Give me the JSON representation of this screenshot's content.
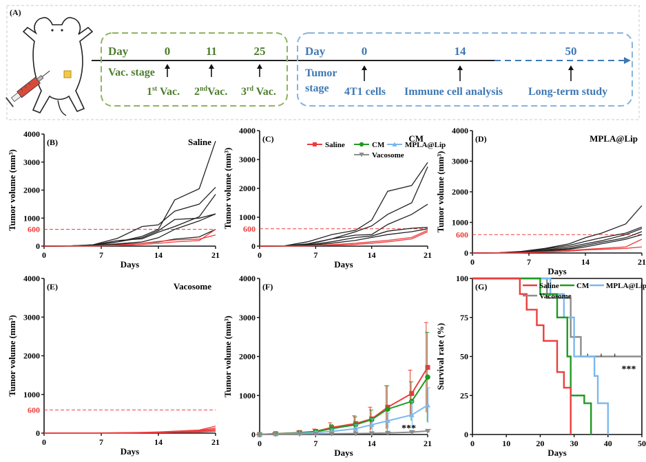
{
  "colors": {
    "saline": "#ee3b3b",
    "cm": "#1f9a1f",
    "mpla": "#7ab8ee",
    "vacosome": "#8c8c8c",
    "vac_green": "#4e7d2e",
    "tumor_blue": "#3e78b4",
    "threshold": "#ee3b3b"
  },
  "icons": {
    "mouse": "mouse-with-syringe-icon"
  },
  "scheme": {
    "panel_label": "(A)",
    "vac": {
      "day_label": "Day",
      "days": [
        "0",
        "11",
        "25"
      ],
      "stage_label": "Vac. stage",
      "vac1": {
        "num": "1",
        "sup": "st",
        "rest": " Vac."
      },
      "vac2": {
        "num": "2",
        "sup": "nd",
        "rest": "Vac."
      },
      "vac3": {
        "num": "3",
        "sup": "rd",
        "rest": " Vac."
      }
    },
    "tumor": {
      "day_label": "Day",
      "days": [
        "0",
        "14",
        "50"
      ],
      "stage_label_1": "Tumor",
      "stage_label_2": "stage",
      "events": [
        "4T1 cells",
        "Immune cell analysis",
        "Long-term study"
      ]
    }
  },
  "charts": {
    "volume_y_label": "Tumor volume (mm³)",
    "x_label": "Days",
    "x_ticks": [
      "0",
      "7",
      "14",
      "21"
    ],
    "y_ticks": [
      "0",
      "1000",
      "2000",
      "3000",
      "4000"
    ],
    "threshold_label": "600"
  },
  "chart_data": [
    {
      "type": "line",
      "panel": "(B)",
      "title": "Saline",
      "xlabel": "Days",
      "ylabel": "Tumor volume (mm³)",
      "xlim": [
        0,
        21
      ],
      "ylim": [
        0,
        4000
      ],
      "threshold": 600,
      "x": [
        0,
        3,
        6,
        9,
        12,
        14,
        16,
        19,
        21
      ],
      "series": [
        {
          "values": [
            0,
            5,
            30,
            150,
            350,
            600,
            1650,
            2050,
            3750
          ],
          "color": "black"
        },
        {
          "values": [
            0,
            5,
            50,
            280,
            700,
            760,
            1250,
            1500,
            2100
          ],
          "color": "black"
        },
        {
          "values": [
            0,
            5,
            40,
            200,
            260,
            500,
            700,
            1050,
            1850
          ],
          "color": "black"
        },
        {
          "values": [
            0,
            5,
            30,
            150,
            300,
            550,
            950,
            1000,
            1150
          ],
          "color": "black"
        },
        {
          "values": [
            0,
            5,
            20,
            80,
            150,
            300,
            600,
            900,
            1150
          ],
          "color": "black"
        },
        {
          "values": [
            0,
            3,
            15,
            60,
            100,
            150,
            250,
            330,
            600
          ],
          "color": "black"
        },
        {
          "values": [
            0,
            2,
            10,
            40,
            100,
            170,
            220,
            250,
            400
          ],
          "color": "red"
        },
        {
          "values": [
            0,
            2,
            5,
            20,
            60,
            100,
            150,
            200,
            600
          ],
          "color": "red"
        }
      ]
    },
    {
      "type": "line",
      "panel": "(C)",
      "title": "CM",
      "xlabel": "Days",
      "ylabel": "Tumor volume (mm³)",
      "xlim": [
        0,
        21
      ],
      "ylim": [
        0,
        4000
      ],
      "threshold": 600,
      "x": [
        0,
        3,
        6,
        9,
        12,
        14,
        16,
        19,
        21
      ],
      "series": [
        {
          "values": [
            0,
            5,
            150,
            400,
            550,
            900,
            1900,
            2100,
            2900
          ],
          "color": "black"
        },
        {
          "values": [
            0,
            5,
            80,
            250,
            500,
            700,
            1100,
            1500,
            2750
          ],
          "color": "black"
        },
        {
          "values": [
            0,
            5,
            60,
            250,
            380,
            400,
            750,
            1100,
            1450
          ],
          "color": "black"
        },
        {
          "values": [
            0,
            5,
            40,
            150,
            300,
            350,
            520,
            620,
            650
          ],
          "color": "black"
        },
        {
          "values": [
            0,
            3,
            20,
            100,
            200,
            300,
            400,
            500,
            600
          ],
          "color": "black"
        },
        {
          "values": [
            0,
            2,
            10,
            50,
            100,
            150,
            200,
            300,
            550
          ],
          "color": "red"
        },
        {
          "values": [
            0,
            2,
            8,
            30,
            60,
            100,
            150,
            250,
            500
          ],
          "color": "red"
        }
      ]
    },
    {
      "type": "line",
      "panel": "(D)",
      "title": "MPLA@Lip",
      "xlabel": "Days",
      "ylabel": "Tumor volume (mm³)",
      "xlim": [
        0,
        21
      ],
      "ylim": [
        0,
        4000
      ],
      "threshold": 600,
      "x": [
        0,
        3,
        6,
        9,
        12,
        14,
        16,
        19,
        21
      ],
      "series": [
        {
          "values": [
            0,
            5,
            50,
            150,
            300,
            500,
            650,
            950,
            1550
          ],
          "color": "black"
        },
        {
          "values": [
            0,
            5,
            40,
            130,
            250,
            380,
            500,
            650,
            850
          ],
          "color": "black"
        },
        {
          "values": [
            0,
            5,
            30,
            100,
            200,
            300,
            400,
            600,
            800
          ],
          "color": "black"
        },
        {
          "values": [
            0,
            3,
            20,
            80,
            150,
            250,
            350,
            500,
            700
          ],
          "color": "black"
        },
        {
          "values": [
            0,
            3,
            20,
            60,
            120,
            200,
            300,
            450,
            600
          ],
          "color": "black"
        },
        {
          "values": [
            0,
            2,
            10,
            40,
            80,
            120,
            150,
            200,
            450
          ],
          "color": "red"
        },
        {
          "values": [
            0,
            2,
            8,
            30,
            60,
            100,
            120,
            150,
            200
          ],
          "color": "red"
        }
      ]
    },
    {
      "type": "line",
      "panel": "(E)",
      "title": "Vacosome",
      "xlabel": "Days",
      "ylabel": "Tumor volume (mm³)",
      "xlim": [
        0,
        21
      ],
      "ylim": [
        0,
        4000
      ],
      "threshold": 600,
      "x": [
        0,
        3,
        6,
        9,
        12,
        14,
        16,
        19,
        21
      ],
      "series": [
        {
          "values": [
            0,
            2,
            5,
            10,
            20,
            30,
            50,
            80,
            180
          ],
          "color": "red"
        },
        {
          "values": [
            0,
            2,
            4,
            8,
            15,
            25,
            40,
            70,
            130
          ],
          "color": "red"
        },
        {
          "values": [
            0,
            1,
            3,
            6,
            12,
            20,
            30,
            50,
            100
          ],
          "color": "red"
        },
        {
          "values": [
            0,
            1,
            3,
            5,
            10,
            15,
            25,
            40,
            70
          ],
          "color": "red"
        },
        {
          "values": [
            0,
            1,
            2,
            4,
            8,
            12,
            20,
            30,
            50
          ],
          "color": "red"
        }
      ]
    },
    {
      "type": "line",
      "panel": "(F)",
      "xlabel": "Days",
      "ylabel": "Tumor volume (mm³)",
      "xlim": [
        0,
        21
      ],
      "ylim": [
        0,
        4000
      ],
      "annotation": "***",
      "x": [
        0,
        2,
        5,
        7,
        9,
        12,
        14,
        16,
        19,
        21
      ],
      "legend_position": "top",
      "series": [
        {
          "name": "Saline",
          "marker": "square",
          "values": [
            0,
            20,
            50,
            80,
            180,
            280,
            400,
            700,
            1050,
            1720
          ],
          "errors": [
            0,
            20,
            40,
            60,
            120,
            200,
            300,
            550,
            600,
            1150
          ]
        },
        {
          "name": "CM",
          "marker": "circle",
          "values": [
            0,
            20,
            40,
            70,
            150,
            250,
            380,
            650,
            850,
            1470
          ],
          "errors": [
            0,
            20,
            30,
            50,
            100,
            200,
            250,
            600,
            500,
            1150
          ]
        },
        {
          "name": "MPLA@Lip",
          "marker": "triangle",
          "values": [
            0,
            10,
            30,
            50,
            80,
            150,
            250,
            350,
            500,
            750
          ],
          "errors": [
            0,
            10,
            20,
            30,
            60,
            100,
            150,
            200,
            350,
            450
          ]
        },
        {
          "name": "Vacosome",
          "marker": "triangle-down",
          "values": [
            0,
            5,
            10,
            15,
            20,
            25,
            30,
            40,
            60,
            90
          ],
          "errors": [
            0,
            5,
            5,
            8,
            10,
            10,
            15,
            20,
            30,
            40
          ]
        }
      ]
    },
    {
      "type": "line",
      "panel": "(G)",
      "step": true,
      "xlabel": "Days",
      "ylabel": "Survival rate (%)",
      "xlim": [
        0,
        50
      ],
      "ylim": [
        0,
        100
      ],
      "x_ticks": [
        "0",
        "10",
        "20",
        "30",
        "40",
        "50"
      ],
      "y_ticks": [
        "0",
        "25",
        "50",
        "75",
        "100"
      ],
      "annotation": "***",
      "legend_position": "top",
      "series": [
        {
          "name": "Saline",
          "steps": [
            [
              0,
              100
            ],
            [
              14,
              90
            ],
            [
              16,
              80
            ],
            [
              19,
              70
            ],
            [
              21,
              60
            ],
            [
              25,
              40
            ],
            [
              27,
              30
            ],
            [
              29,
              0
            ]
          ]
        },
        {
          "name": "CM",
          "steps": [
            [
              0,
              100
            ],
            [
              20,
              90
            ],
            [
              25,
              75
            ],
            [
              28,
              50
            ],
            [
              29,
              25
            ],
            [
              33,
              20
            ],
            [
              35,
              0
            ]
          ]
        },
        {
          "name": "MPLA@Lip",
          "steps": [
            [
              0,
              100
            ],
            [
              23,
              90
            ],
            [
              27,
              75
            ],
            [
              30,
              50
            ],
            [
              36,
              37.5
            ],
            [
              37,
              20
            ],
            [
              40,
              0
            ]
          ]
        },
        {
          "name": "Vacosome",
          "steps": [
            [
              0,
              100
            ],
            [
              22,
              87.5
            ],
            [
              29,
              62.5
            ],
            [
              32,
              50
            ],
            [
              50,
              50
            ]
          ],
          "censored_at": [
            34,
            38,
            42
          ]
        }
      ]
    }
  ]
}
